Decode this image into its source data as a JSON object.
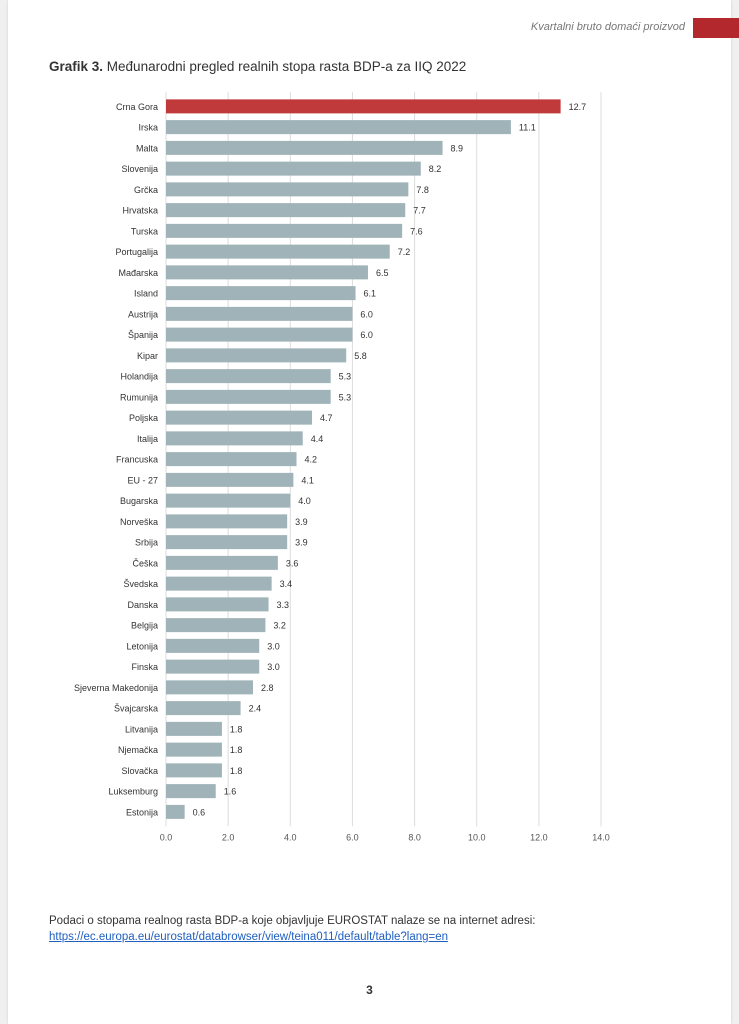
{
  "header": {
    "section_title": "Kvartalni bruto domaći proizvod",
    "accent_color": "#b3282d"
  },
  "chart_title": {
    "prefix": "Grafik 3.",
    "text": "Međunarodni pregled realnih stopa rasta BDP-a za IIQ 2022"
  },
  "chart_data": {
    "type": "bar",
    "orientation": "horizontal",
    "categories": [
      "Crna Gora",
      "Irska",
      "Malta",
      "Slovenija",
      "Grčka",
      "Hrvatska",
      "Turska",
      "Portugalija",
      "Mađarska",
      "Island",
      "Austrija",
      "Španija",
      "Kipar",
      "Holandija",
      "Rumunija",
      "Poljska",
      "Italija",
      "Francuska",
      "EU - 27",
      "Bugarska",
      "Norveška",
      "Srbija",
      "Češka",
      "Švedska",
      "Danska",
      "Belgija",
      "Letonija",
      "Finska",
      "Sjeverna Makedonija",
      "Švajcarska",
      "Litvanija",
      "Njemačka",
      "Slovačka",
      "Luksemburg",
      "Estonija"
    ],
    "values": [
      12.7,
      11.1,
      8.9,
      8.2,
      7.8,
      7.7,
      7.6,
      7.2,
      6.5,
      6.1,
      6.0,
      6.0,
      5.8,
      5.3,
      5.3,
      4.7,
      4.4,
      4.2,
      4.1,
      4.0,
      3.9,
      3.9,
      3.6,
      3.4,
      3.3,
      3.2,
      3.0,
      3.0,
      2.8,
      2.4,
      1.8,
      1.8,
      1.8,
      1.6,
      0.6
    ],
    "value_labels": [
      "12.7",
      "11.1",
      "8.9",
      "8.2",
      "7.8",
      "7.7",
      "7.6",
      "7.2",
      "6.5",
      "6.1",
      "6.0",
      "6.0",
      "5.8",
      "5.3",
      "5.3",
      "4.7",
      "4.4",
      "4.2",
      "4.1",
      "4.0",
      "3.9",
      "3.9",
      "3.6",
      "3.4",
      "3.3",
      "3.2",
      "3.0",
      "3.0",
      "2.8",
      "2.4",
      "1.8",
      "1.8",
      "1.8",
      "1.6",
      "0.6"
    ],
    "xlim": [
      0,
      14
    ],
    "x_ticks": [
      "0.0",
      "2.0",
      "4.0",
      "6.0",
      "8.0",
      "10.0",
      "12.0",
      "14.0"
    ],
    "grid": true,
    "bar_color": "#9fb3b8",
    "highlight_color": "#c0393b",
    "highlight_category": "Crna Gora"
  },
  "source_note": {
    "text": "Podaci o stopama realnog rasta BDP-a koje objavljuje EUROSTAT nalaze se na internet adresi:",
    "link": "https://ec.europa.eu/eurostat/databrowser/view/teina011/default/table?lang=en"
  },
  "page_number": "3"
}
